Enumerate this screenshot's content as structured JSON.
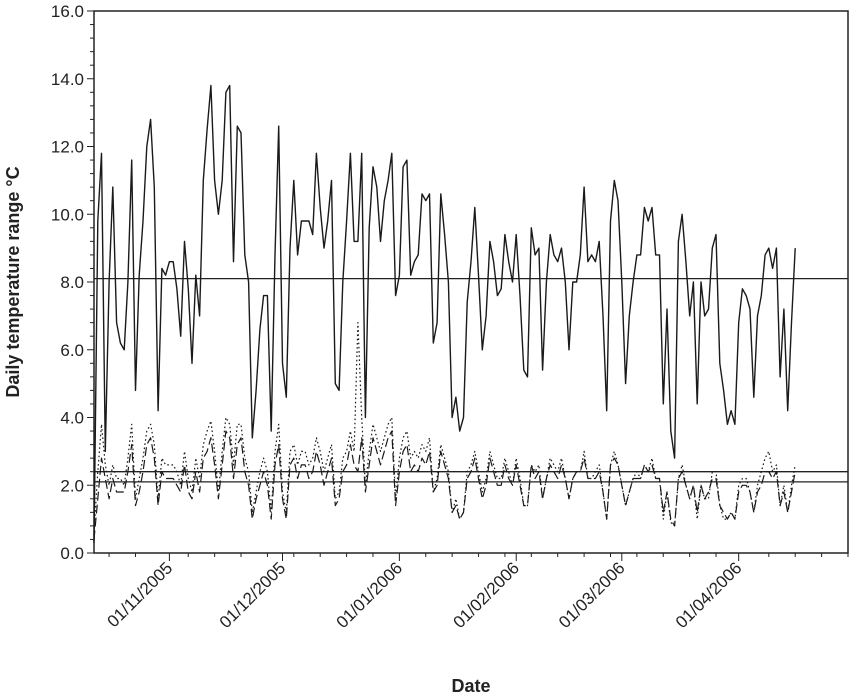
{
  "chart_data": {
    "type": "line",
    "xlabel": "Date",
    "ylabel": "Daily temperature range °C",
    "ylim": [
      0,
      16
    ],
    "xlim": [
      "2005-10-12",
      "2006-04-30"
    ],
    "yticks": [
      0,
      2,
      4,
      6,
      8,
      10,
      12,
      14,
      16
    ],
    "ytick_labels": [
      "0.0",
      "2.0",
      "4.0",
      "6.0",
      "8.0",
      "10.0",
      "12.0",
      "14.0",
      "16.0"
    ],
    "xticks": [
      "2005-11-01",
      "2005-12-01",
      "2006-01-01",
      "2006-02-01",
      "2006-03-01",
      "2006-04-01"
    ],
    "xtick_labels": [
      "01/11/2005",
      "01/12/2005",
      "01/01/2006",
      "01/02/2006",
      "01/03/2006",
      "01/04/2006"
    ],
    "grid": false,
    "reference_lines": [
      8.1,
      2.4,
      2.1
    ],
    "series": [
      {
        "style": "solid",
        "start": "2005-10-12",
        "values": [
          0.3,
          9.8,
          11.8,
          3.0,
          8.0,
          10.8,
          6.8,
          6.2,
          6.0,
          8.0,
          11.6,
          4.8,
          8.2,
          9.8,
          12.0,
          12.8,
          10.8,
          4.2,
          8.4,
          8.2,
          8.6,
          8.6,
          7.8,
          6.4,
          9.2,
          7.8,
          5.6,
          8.2,
          7.0,
          11.0,
          12.5,
          13.8,
          11.0,
          10.0,
          11.0,
          13.6,
          13.8,
          8.6,
          12.6,
          12.4,
          8.8,
          8.0,
          3.4,
          4.8,
          6.6,
          7.6,
          7.6,
          3.6,
          8.8,
          12.6,
          5.6,
          4.6,
          9.0,
          11.0,
          8.8,
          9.8,
          9.8,
          9.8,
          9.4,
          11.8,
          10.2,
          9.0,
          9.8,
          11.0,
          5.0,
          4.8,
          8.0,
          9.8,
          11.8,
          9.2,
          9.2,
          11.8,
          4.0,
          9.6,
          11.4,
          10.8,
          9.2,
          10.4,
          11.0,
          11.8,
          7.6,
          8.2,
          11.4,
          11.6,
          8.2,
          8.6,
          8.8,
          10.6,
          10.4,
          10.6,
          6.2,
          6.8,
          10.6,
          9.4,
          8.0,
          4.0,
          4.6,
          3.6,
          4.0,
          7.4,
          8.6,
          10.2,
          8.2,
          6.0,
          7.0,
          9.2,
          8.6,
          7.6,
          7.8,
          9.4,
          8.6,
          8.0,
          9.4,
          7.6,
          5.4,
          5.2,
          9.6,
          8.8,
          9.0,
          5.4,
          8.0,
          9.4,
          8.8,
          8.6,
          9.0,
          8.0,
          6.0,
          8.0,
          8.0,
          8.8,
          10.8,
          8.6,
          8.8,
          8.6,
          9.2,
          7.0,
          4.2,
          9.8,
          11.0,
          10.4,
          8.0,
          5.0,
          7.0,
          8.0,
          8.8,
          8.8,
          10.2,
          9.8,
          10.2,
          8.8,
          8.8,
          4.4,
          7.2,
          3.6,
          2.8,
          9.2,
          10.0,
          8.6,
          7.0,
          8.0,
          4.4,
          8.0,
          7.0,
          7.2,
          9.0,
          9.4,
          5.6,
          4.8,
          3.8,
          4.2,
          3.8,
          6.8,
          7.8,
          7.6,
          7.2,
          4.6,
          7.0,
          7.6,
          8.8,
          9.0,
          8.4,
          9.0,
          5.2,
          7.2,
          4.2,
          6.8,
          9.0
        ]
      },
      {
        "style": "dashed",
        "start": "2005-10-12",
        "values": [
          0.4,
          1.6,
          2.8,
          2.2,
          1.6,
          2.2,
          1.8,
          1.8,
          1.8,
          2.4,
          3.2,
          1.4,
          1.8,
          2.4,
          3.2,
          3.4,
          2.8,
          1.4,
          2.4,
          2.2,
          2.2,
          2.2,
          2.0,
          1.8,
          2.6,
          1.8,
          1.6,
          2.4,
          1.8,
          2.8,
          3.0,
          3.4,
          2.6,
          1.6,
          2.6,
          3.6,
          3.4,
          2.2,
          3.2,
          3.4,
          2.4,
          2.0,
          1.0,
          1.6,
          2.0,
          2.4,
          2.0,
          1.0,
          2.6,
          3.2,
          1.6,
          1.0,
          2.6,
          2.8,
          2.2,
          2.6,
          2.6,
          2.2,
          2.4,
          3.0,
          2.6,
          2.0,
          2.4,
          2.8,
          1.4,
          1.6,
          2.4,
          2.6,
          3.2,
          2.6,
          2.4,
          3.4,
          1.8,
          2.6,
          3.4,
          3.0,
          2.6,
          3.0,
          3.4,
          3.6,
          1.4,
          2.4,
          3.0,
          3.2,
          2.4,
          2.6,
          2.4,
          2.8,
          2.6,
          3.0,
          1.8,
          2.0,
          3.0,
          2.6,
          2.2,
          1.2,
          1.4,
          1.0,
          1.2,
          2.2,
          2.4,
          2.8,
          2.2,
          1.6,
          2.0,
          2.8,
          2.4,
          2.0,
          2.0,
          2.6,
          2.2,
          2.0,
          2.6,
          2.0,
          1.4,
          1.4,
          2.6,
          2.2,
          2.4,
          1.6,
          2.2,
          2.6,
          2.4,
          2.2,
          2.6,
          2.2,
          1.6,
          2.2,
          2.4,
          2.4,
          2.8,
          2.2,
          2.2,
          2.2,
          2.4,
          1.8,
          1.0,
          2.6,
          2.8,
          2.6,
          2.0,
          1.4,
          1.8,
          2.2,
          2.2,
          2.2,
          2.6,
          2.4,
          2.6,
          2.2,
          2.2,
          1.2,
          1.8,
          1.0,
          0.8,
          2.2,
          2.4,
          2.0,
          1.6,
          2.0,
          1.2,
          2.0,
          1.6,
          1.8,
          2.2,
          2.2,
          1.4,
          1.2,
          1.0,
          1.2,
          1.0,
          1.8,
          2.0,
          2.0,
          1.8,
          1.2,
          1.8,
          2.0,
          2.4,
          2.4,
          2.2,
          2.4,
          1.4,
          1.8,
          1.2,
          1.8,
          2.4
        ]
      },
      {
        "style": "dotted",
        "start": "2005-10-12",
        "values": [
          0.6,
          2.4,
          3.8,
          2.6,
          2.0,
          2.6,
          2.2,
          2.2,
          2.0,
          2.8,
          3.8,
          1.6,
          2.2,
          2.8,
          3.6,
          3.8,
          3.2,
          1.6,
          2.8,
          2.6,
          2.6,
          2.6,
          2.4,
          2.0,
          3.0,
          2.2,
          1.8,
          2.8,
          2.2,
          3.2,
          3.6,
          3.9,
          3.0,
          1.8,
          3.0,
          4.0,
          3.8,
          2.6,
          3.8,
          3.8,
          2.8,
          2.4,
          1.2,
          1.8,
          2.4,
          2.8,
          2.4,
          1.2,
          3.0,
          3.8,
          1.8,
          1.2,
          3.0,
          3.2,
          2.6,
          3.0,
          3.0,
          2.6,
          2.8,
          3.4,
          3.0,
          2.4,
          2.8,
          3.2,
          1.6,
          1.8,
          2.8,
          3.0,
          3.6,
          3.0,
          6.8,
          4.0,
          2.0,
          3.0,
          3.8,
          3.4,
          3.0,
          3.4,
          3.8,
          4.0,
          1.6,
          2.8,
          3.4,
          3.6,
          2.8,
          3.0,
          2.8,
          3.2,
          3.0,
          3.4,
          1.8,
          2.2,
          3.2,
          2.8,
          2.4,
          1.2,
          1.6,
          1.0,
          1.2,
          2.4,
          2.6,
          3.0,
          2.4,
          1.8,
          2.2,
          3.0,
          2.6,
          2.2,
          2.2,
          2.8,
          2.4,
          2.0,
          2.8,
          2.2,
          1.4,
          1.4,
          2.6,
          2.4,
          2.6,
          1.6,
          2.2,
          2.8,
          2.6,
          2.4,
          2.8,
          2.2,
          1.6,
          2.2,
          2.4,
          2.4,
          3.0,
          2.2,
          2.2,
          2.4,
          2.6,
          1.8,
          1.0,
          2.6,
          3.0,
          2.6,
          2.0,
          1.4,
          1.8,
          2.2,
          2.4,
          2.2,
          2.6,
          2.4,
          2.8,
          2.2,
          2.2,
          1.0,
          1.8,
          0.9,
          0.8,
          2.2,
          2.6,
          2.0,
          1.6,
          2.0,
          1.0,
          2.0,
          1.6,
          1.6,
          2.4,
          2.4,
          1.4,
          1.0,
          1.0,
          1.2,
          1.0,
          2.0,
          2.2,
          2.2,
          1.8,
          1.2,
          2.0,
          2.4,
          2.8,
          3.0,
          2.4,
          2.6,
          1.4,
          2.0,
          1.2,
          2.0,
          2.6
        ]
      }
    ]
  }
}
